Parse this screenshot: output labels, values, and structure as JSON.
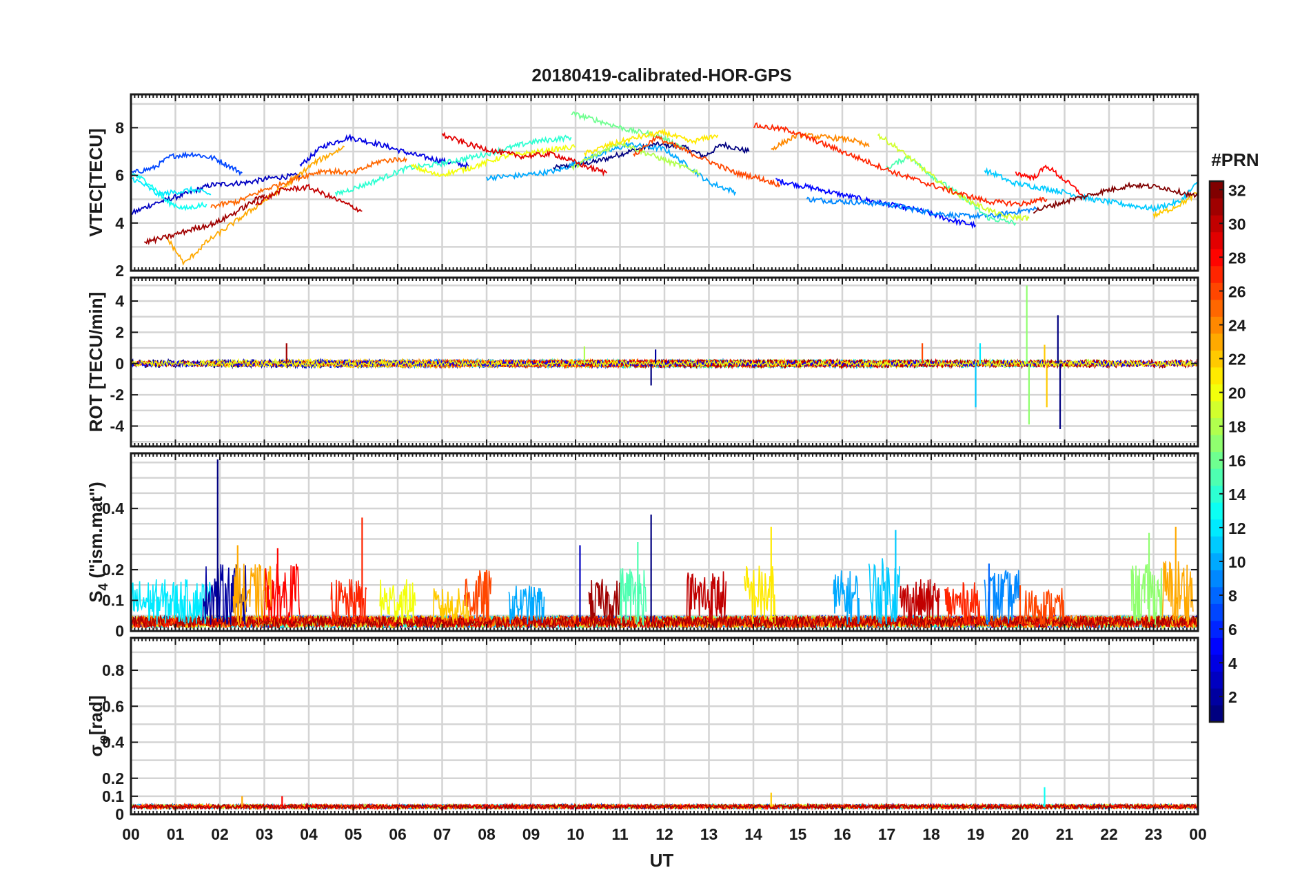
{
  "chart_data": {
    "type": "line",
    "title": "20180419-calibrated-HOR-GPS",
    "xlabel": "UT",
    "x_ticks": [
      "00",
      "01",
      "02",
      "03",
      "04",
      "05",
      "06",
      "07",
      "08",
      "09",
      "10",
      "11",
      "12",
      "13",
      "14",
      "15",
      "16",
      "17",
      "18",
      "19",
      "20",
      "21",
      "22",
      "23",
      "00"
    ],
    "xlim": [
      0,
      24
    ],
    "grid": true,
    "colorbar": {
      "label": "#PRN",
      "range": [
        1,
        32
      ],
      "ticks": [
        "2",
        "4",
        "6",
        "8",
        "10",
        "12",
        "14",
        "16",
        "18",
        "20",
        "22",
        "24",
        "26",
        "28",
        "30",
        "32"
      ],
      "colormap": "jet"
    },
    "panels": [
      {
        "ylabel": "VTEC[TECU]",
        "ylim": [
          2,
          9.4
        ],
        "yticks": [
          "2",
          "4",
          "6",
          "8"
        ],
        "series": [
          {
            "prn": 1,
            "x": [
              9.5,
              10.5,
              11.2,
              11.8,
              12.4,
              12.9,
              13.3,
              13.9
            ],
            "y": [
              6.3,
              6.6,
              7.0,
              7.3,
              7.2,
              6.8,
              7.3,
              7.0
            ]
          },
          {
            "prn": 3,
            "x": [
              0,
              0.5,
              1.2,
              1.8,
              2.6,
              3.2,
              3.8
            ],
            "y": [
              4.4,
              4.8,
              5.2,
              5.6,
              5.7,
              5.9,
              6.0
            ]
          },
          {
            "prn": 4,
            "x": [
              3.8,
              4.3,
              4.9,
              5.6,
              6.3,
              7.0,
              7.6
            ],
            "y": [
              6.4,
              7.2,
              7.6,
              7.3,
              6.9,
              6.6,
              6.4
            ]
          },
          {
            "prn": 5,
            "x": [
              14.5,
              15.5,
              16.2,
              17.0,
              17.8,
              18.5,
              19.0
            ],
            "y": [
              5.8,
              5.4,
              5.1,
              4.8,
              4.5,
              4.1,
              3.9
            ]
          },
          {
            "prn": 7,
            "x": [
              0,
              0.5,
              0.9,
              1.4,
              1.9,
              2.5
            ],
            "y": [
              6.1,
              6.3,
              6.8,
              6.9,
              6.7,
              6.1
            ]
          },
          {
            "prn": 9,
            "x": [
              15.2,
              16.0,
              17.0,
              17.8,
              18.6,
              19.4,
              20.0,
              20.4
            ],
            "y": [
              5.0,
              4.9,
              4.8,
              4.5,
              4.3,
              4.3,
              4.5,
              4.6
            ]
          },
          {
            "prn": 10,
            "x": [
              8.0,
              8.8,
              9.6,
              10.4,
              11.2,
              12.0,
              12.6,
              13.0,
              13.6
            ],
            "y": [
              5.9,
              6.0,
              6.2,
              6.8,
              7.3,
              7.1,
              6.3,
              5.7,
              5.3
            ]
          },
          {
            "prn": 11,
            "x": [
              19.2,
              19.5,
              19.8,
              20.4,
              21.0,
              21.6,
              22.3,
              23.0,
              23.6,
              24.0
            ],
            "y": [
              6.2,
              6.0,
              5.7,
              5.5,
              5.3,
              5.0,
              4.8,
              4.6,
              4.9,
              5.7
            ]
          },
          {
            "prn": 12,
            "x": [
              0,
              0.3,
              0.6,
              1.0,
              1.4,
              1.8
            ],
            "y": [
              5.9,
              5.6,
              5.2,
              5.3,
              5.4,
              5.2
            ]
          },
          {
            "prn": 13,
            "x": [
              0,
              0.4,
              0.8,
              1.2,
              1.7
            ],
            "y": [
              6.1,
              5.7,
              4.9,
              4.6,
              4.8
            ]
          },
          {
            "prn": 14,
            "x": [
              4.6,
              5.4,
              6.2,
              7.0,
              8.0,
              9.0,
              9.9
            ],
            "y": [
              5.2,
              5.7,
              6.3,
              6.5,
              6.9,
              7.4,
              7.6
            ]
          },
          {
            "prn": 15,
            "x": [
              17.0,
              17.5,
              18.0,
              18.7,
              19.3,
              19.9
            ],
            "y": [
              6.3,
              6.8,
              6.0,
              5.1,
              4.2,
              4.0
            ]
          },
          {
            "prn": 16,
            "x": [
              9.9,
              10.5,
              11.2,
              11.8,
              12.5
            ],
            "y": [
              8.6,
              8.3,
              7.9,
              7.7,
              7.1
            ]
          },
          {
            "prn": 18,
            "x": [
              9.9,
              10.5,
              11.0,
              11.5,
              12.2,
              12.8
            ],
            "y": [
              6.3,
              6.9,
              7.4,
              7.0,
              6.5,
              6.1
            ]
          },
          {
            "prn": 19,
            "x": [
              16.8,
              17.2,
              17.8,
              18.4,
              19.0,
              19.6,
              20.2
            ],
            "y": [
              7.7,
              7.2,
              6.3,
              5.4,
              4.8,
              4.3,
              4.2
            ]
          },
          {
            "prn": 20,
            "x": [
              6.3,
              6.9,
              7.6,
              8.4,
              9.2,
              10.0
            ],
            "y": [
              6.4,
              6.0,
              6.3,
              6.8,
              7.0,
              7.2
            ]
          },
          {
            "prn": 21,
            "x": [
              10.2,
              10.8,
              11.4,
              12.0,
              12.6,
              13.2
            ],
            "y": [
              6.9,
              7.3,
              7.6,
              7.8,
              7.4,
              7.7
            ]
          },
          {
            "prn": 22,
            "x": [
              23.0,
              23.4,
              23.8,
              24.0
            ],
            "y": [
              4.3,
              4.6,
              5.0,
              5.3
            ]
          },
          {
            "prn": 23,
            "x": [
              0.8,
              1.2,
              1.7,
              2.3,
              2.9,
              3.5,
              4.1,
              4.8
            ],
            "y": [
              3.4,
              2.3,
              3.2,
              4.0,
              4.8,
              5.6,
              6.5,
              7.2
            ]
          },
          {
            "prn": 24,
            "x": [
              14.4,
              15.0,
              15.6,
              16.2,
              16.6
            ],
            "y": [
              7.1,
              7.7,
              7.6,
              7.5,
              7.2
            ]
          },
          {
            "prn": 25,
            "x": [
              1.8,
              2.4,
              3.0,
              3.6,
              4.3,
              5.0,
              5.6,
              6.2
            ],
            "y": [
              4.7,
              4.9,
              5.4,
              5.8,
              6.2,
              6.1,
              6.6,
              6.7
            ]
          },
          {
            "prn": 26,
            "x": [
              11.3,
              11.8,
              12.4,
              13.0,
              13.6,
              14.1,
              14.6
            ],
            "y": [
              6.8,
              7.6,
              7.1,
              6.6,
              6.1,
              5.9,
              5.6
            ]
          },
          {
            "prn": 27,
            "x": [
              14.0,
              14.8,
              15.6,
              16.4,
              17.2,
              18.0,
              18.7,
              19.3,
              20.0,
              20.6
            ],
            "y": [
              8.1,
              7.9,
              7.3,
              6.7,
              6.1,
              5.6,
              5.2,
              4.9,
              4.8,
              5.0
            ]
          },
          {
            "prn": 28,
            "x": [
              19.9,
              20.3,
              20.6,
              21.0,
              21.4
            ],
            "y": [
              6.1,
              5.9,
              6.4,
              5.8,
              5.2
            ]
          },
          {
            "prn": 29,
            "x": [
              7.0,
              7.6,
              8.2,
              8.8,
              9.5,
              10.2,
              10.7
            ],
            "y": [
              7.7,
              7.3,
              7.0,
              6.8,
              6.9,
              6.4,
              6.1
            ]
          },
          {
            "prn": 30,
            "x": [
              2.8,
              3.4,
              4.0,
              4.6,
              5.2
            ],
            "y": [
              4.8,
              5.4,
              5.5,
              5.0,
              4.5
            ]
          },
          {
            "prn": 31,
            "x": [
              0.3,
              0.8,
              1.3,
              1.9,
              2.4,
              3.0
            ],
            "y": [
              3.2,
              3.4,
              3.7,
              4.0,
              4.5,
              5.2
            ]
          },
          {
            "prn": 32,
            "x": [
              20.3,
              21.0,
              21.8,
              22.5,
              23.2,
              24.0
            ],
            "y": [
              4.5,
              4.9,
              5.3,
              5.6,
              5.5,
              5.1
            ]
          }
        ]
      },
      {
        "ylabel": "ROT [TECU/min]",
        "ylim": [
          -5.3,
          5.5
        ],
        "yticks": [
          "-4",
          "-2",
          "0",
          "2",
          "4"
        ],
        "spikes": [
          {
            "prn": 31,
            "x": 3.5,
            "y": 1.3
          },
          {
            "prn": 18,
            "x": 10.2,
            "y": 1.1
          },
          {
            "prn": 1,
            "x": 11.7,
            "y": -1.4
          },
          {
            "prn": 2,
            "x": 11.8,
            "y": 0.9
          },
          {
            "prn": 26,
            "x": 17.8,
            "y": 1.3
          },
          {
            "prn": 11,
            "x": 19.0,
            "y": -2.8
          },
          {
            "prn": 12,
            "x": 19.1,
            "y": 1.3
          },
          {
            "prn": 17,
            "x": 20.15,
            "y": 5.0
          },
          {
            "prn": 17,
            "x": 20.2,
            "y": -3.9
          },
          {
            "prn": 22,
            "x": 20.55,
            "y": 1.2
          },
          {
            "prn": 22,
            "x": 20.6,
            "y": -2.8
          },
          {
            "prn": 1,
            "x": 20.85,
            "y": 3.1
          },
          {
            "prn": 1,
            "x": 20.9,
            "y": -4.2
          }
        ]
      },
      {
        "ylabel": "S4 (\"ism.mat\")",
        "ylabel_main": "S",
        "ylabel_sub": "4",
        "ylabel_rest": " (\"ism.mat\")",
        "ylim": [
          0,
          0.58
        ],
        "yticks": [
          "0",
          "0.1",
          "0.2",
          "0.4"
        ],
        "peaks": [
          {
            "prn": 1,
            "x": 1.95,
            "y": 0.56
          },
          {
            "prn": 23,
            "x": 2.4,
            "y": 0.28
          },
          {
            "prn": 28,
            "x": 3.3,
            "y": 0.27
          },
          {
            "prn": 27,
            "x": 5.2,
            "y": 0.37
          },
          {
            "prn": 26,
            "x": 8.0,
            "y": 0.2
          },
          {
            "prn": 3,
            "x": 10.1,
            "y": 0.28
          },
          {
            "prn": 1,
            "x": 11.7,
            "y": 0.38
          },
          {
            "prn": 15,
            "x": 11.4,
            "y": 0.29
          },
          {
            "prn": 21,
            "x": 14.4,
            "y": 0.34
          },
          {
            "prn": 11,
            "x": 17.2,
            "y": 0.33
          },
          {
            "prn": 8,
            "x": 19.3,
            "y": 0.22
          },
          {
            "prn": 26,
            "x": 20.0,
            "y": 0.15
          },
          {
            "prn": 17,
            "x": 22.9,
            "y": 0.32
          },
          {
            "prn": 23,
            "x": 23.5,
            "y": 0.34
          }
        ]
      },
      {
        "ylabel": "σφ [rad]",
        "ylabel_main": "σ",
        "ylabel_sub": "φ",
        "ylabel_rest": "[rad]",
        "ylim": [
          0,
          0.98
        ],
        "yticks": [
          "0",
          "0.1",
          "0.2",
          "0.4",
          "0.6",
          "0.8"
        ],
        "peaks": [
          {
            "prn": 13,
            "x": 20.55,
            "y": 0.15
          },
          {
            "prn": 22,
            "x": 14.4,
            "y": 0.12
          },
          {
            "prn": 28,
            "x": 3.4,
            "y": 0.1
          },
          {
            "prn": 23,
            "x": 2.5,
            "y": 0.1
          }
        ]
      }
    ]
  }
}
